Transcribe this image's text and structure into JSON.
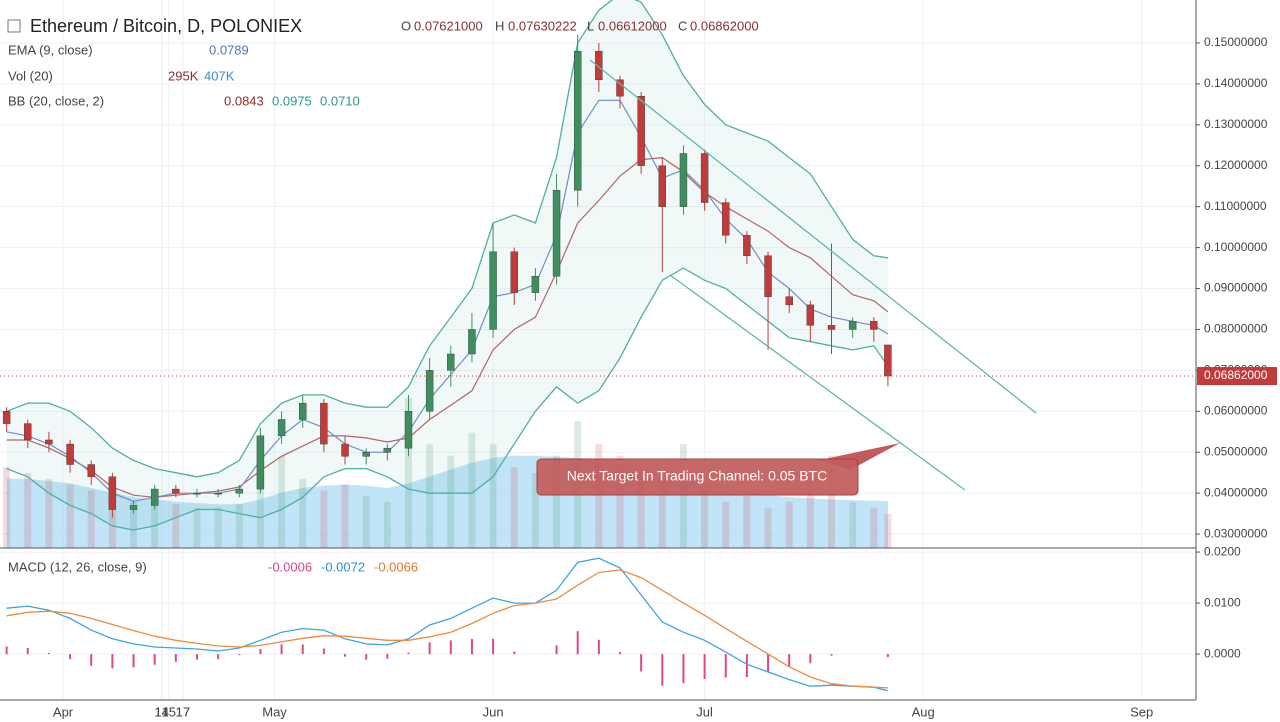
{
  "header": {
    "title": "Ethereum / Bitcoin, D, POLONIEX",
    "ohlc": [
      {
        "key": "O",
        "value": "0.07621000"
      },
      {
        "key": "H",
        "value": "0.07630222"
      },
      {
        "key": "L",
        "value": "0.06612000"
      },
      {
        "key": "C",
        "value": "0.06862000"
      }
    ],
    "indicators": [
      {
        "name": "EMA (9, close)",
        "values": [
          "0.0789"
        ]
      },
      {
        "name": "Vol (20)",
        "values": [
          "295K",
          "407K"
        ]
      },
      {
        "name": "BB (20, close, 2)",
        "values": [
          "0.0843",
          "0.0975",
          "0.0710"
        ]
      }
    ]
  },
  "chart_data": [
    {
      "type": "candlestick",
      "x": [
        -8,
        -5,
        -2,
        1,
        4,
        7,
        10,
        13,
        16,
        19,
        22,
        25,
        28,
        31,
        34,
        37,
        40,
        43,
        46,
        49,
        52,
        55,
        58,
        61,
        64,
        67,
        70,
        73,
        76,
        79,
        82,
        85,
        88,
        91,
        94,
        97,
        100,
        103,
        106,
        109,
        112,
        115,
        117
      ],
      "open": [
        0.06,
        0.057,
        0.053,
        0.052,
        0.047,
        0.044,
        0.036,
        0.037,
        0.041,
        0.04,
        0.04,
        0.04,
        0.041,
        0.054,
        0.058,
        0.062,
        0.052,
        0.049,
        0.05,
        0.051,
        0.06,
        0.07,
        0.074,
        0.08,
        0.099,
        0.089,
        0.093,
        0.114,
        0.148,
        0.141,
        0.137,
        0.12,
        0.11,
        0.123,
        0.111,
        0.103,
        0.098,
        0.088,
        0.086,
        0.081,
        0.08,
        0.082,
        0.07621
      ],
      "high": [
        0.061,
        0.058,
        0.055,
        0.053,
        0.048,
        0.045,
        0.038,
        0.042,
        0.042,
        0.041,
        0.041,
        0.042,
        0.056,
        0.06,
        0.064,
        0.063,
        0.054,
        0.051,
        0.052,
        0.064,
        0.073,
        0.076,
        0.084,
        0.106,
        0.1,
        0.095,
        0.118,
        0.152,
        0.15,
        0.142,
        0.138,
        0.122,
        0.125,
        0.124,
        0.112,
        0.104,
        0.099,
        0.09,
        0.087,
        0.101,
        0.083,
        0.083,
        0.07630222
      ],
      "low": [
        0.055,
        0.051,
        0.05,
        0.045,
        0.042,
        0.034,
        0.035,
        0.036,
        0.039,
        0.039,
        0.039,
        0.039,
        0.04,
        0.052,
        0.056,
        0.05,
        0.047,
        0.047,
        0.048,
        0.049,
        0.058,
        0.066,
        0.072,
        0.078,
        0.086,
        0.087,
        0.091,
        0.11,
        0.138,
        0.134,
        0.118,
        0.094,
        0.108,
        0.109,
        0.101,
        0.096,
        0.075,
        0.084,
        0.077,
        0.074,
        0.078,
        0.077,
        0.06612
      ],
      "close": [
        0.057,
        0.053,
        0.052,
        0.047,
        0.044,
        0.036,
        0.037,
        0.041,
        0.04,
        0.04,
        0.04,
        0.041,
        0.054,
        0.058,
        0.062,
        0.052,
        0.049,
        0.05,
        0.051,
        0.06,
        0.07,
        0.074,
        0.08,
        0.099,
        0.089,
        0.093,
        0.114,
        0.148,
        0.141,
        0.137,
        0.12,
        0.11,
        0.123,
        0.111,
        0.103,
        0.098,
        0.088,
        0.086,
        0.081,
        0.08,
        0.082,
        0.08,
        0.06862
      ],
      "ema": [
        0.055,
        0.054,
        0.052,
        0.049,
        0.045,
        0.04,
        0.038,
        0.039,
        0.04,
        0.04,
        0.04,
        0.041,
        0.048,
        0.054,
        0.058,
        0.056,
        0.052,
        0.05,
        0.05,
        0.055,
        0.063,
        0.069,
        0.075,
        0.088,
        0.089,
        0.091,
        0.103,
        0.128,
        0.136,
        0.136,
        0.127,
        0.117,
        0.119,
        0.114,
        0.107,
        0.102,
        0.094,
        0.09,
        0.085,
        0.083,
        0.082,
        0.081,
        0.0789
      ],
      "bb_upper": [
        0.06,
        0.062,
        0.062,
        0.06,
        0.056,
        0.051,
        0.048,
        0.046,
        0.045,
        0.044,
        0.045,
        0.048,
        0.057,
        0.062,
        0.064,
        0.064,
        0.062,
        0.061,
        0.061,
        0.066,
        0.076,
        0.083,
        0.09,
        0.106,
        0.108,
        0.106,
        0.122,
        0.15,
        0.158,
        0.162,
        0.16,
        0.152,
        0.142,
        0.135,
        0.13,
        0.128,
        0.126,
        0.122,
        0.118,
        0.11,
        0.102,
        0.098,
        0.0975
      ],
      "bb_middle": [
        0.053,
        0.053,
        0.051,
        0.0485,
        0.0455,
        0.0415,
        0.0395,
        0.039,
        0.0395,
        0.04,
        0.0405,
        0.0415,
        0.0455,
        0.049,
        0.0515,
        0.054,
        0.054,
        0.0535,
        0.0525,
        0.0535,
        0.058,
        0.0615,
        0.065,
        0.075,
        0.08,
        0.083,
        0.094,
        0.106,
        0.1115,
        0.1175,
        0.1215,
        0.122,
        0.1185,
        0.1135,
        0.11,
        0.107,
        0.104,
        0.1,
        0.0975,
        0.093,
        0.0885,
        0.087,
        0.0843
      ],
      "bb_lower": [
        0.046,
        0.044,
        0.04,
        0.037,
        0.035,
        0.032,
        0.031,
        0.032,
        0.034,
        0.036,
        0.036,
        0.035,
        0.034,
        0.036,
        0.039,
        0.044,
        0.046,
        0.046,
        0.044,
        0.041,
        0.04,
        0.04,
        0.04,
        0.044,
        0.052,
        0.06,
        0.066,
        0.062,
        0.065,
        0.073,
        0.083,
        0.092,
        0.095,
        0.092,
        0.09,
        0.086,
        0.082,
        0.078,
        0.077,
        0.076,
        0.075,
        0.076,
        0.071
      ],
      "volume": [
        700,
        650,
        600,
        550,
        500,
        450,
        400,
        420,
        380,
        350,
        350,
        380,
        700,
        800,
        600,
        500,
        550,
        450,
        400,
        1300,
        900,
        800,
        1000,
        900,
        700,
        650,
        800,
        1100,
        900,
        800,
        700,
        600,
        900,
        500,
        400,
        450,
        350,
        400,
        600,
        800,
        400,
        350,
        295
      ],
      "volume_ma": [
        600,
        600,
        580,
        560,
        520,
        480,
        440,
        420,
        400,
        390,
        380,
        380,
        420,
        480,
        520,
        540,
        550,
        540,
        520,
        560,
        620,
        680,
        740,
        780,
        800,
        800,
        790,
        780,
        760,
        720,
        680,
        640,
        600,
        560,
        520,
        490,
        460,
        440,
        430,
        420,
        415,
        410,
        407
      ],
      "up_color": "#3f8f5e",
      "down_color": "#c23b3b",
      "ema_color": "#6d8fc4",
      "bb_color": "#4fb0a0",
      "bb_middle_color": "#b46464",
      "volume_ma_color": "#8fcdf3",
      "xlim": [
        -8.94,
        160.7
      ],
      "xticks": [
        {
          "value": 0,
          "label": "Apr"
        },
        17,
        {
          "value": 30,
          "label": "May"
        },
        15,
        {
          "value": 61,
          "label": "Jun"
        },
        14,
        {
          "value": 91,
          "label": "Jul"
        },
        17,
        {
          "value": 122,
          "label": "Aug"
        },
        14,
        {
          "value": 153,
          "label": "Sep"
        }
      ],
      "ylim": [
        0.0266,
        0.1605
      ],
      "yticks": [
        {
          "value": 0.03,
          "label": "0.03000000"
        },
        {
          "value": 0.04,
          "label": "0.04000000"
        },
        {
          "value": 0.05,
          "label": "0.05000000"
        },
        {
          "value": 0.06,
          "label": "0.06000000"
        },
        {
          "value": 0.07,
          "label": "0.07000000"
        },
        {
          "value": 0.08,
          "label": "0.08000000"
        },
        {
          "value": 0.09,
          "label": "0.09000000"
        },
        {
          "value": 0.1,
          "label": "0.10000000"
        },
        {
          "value": 0.11,
          "label": "0.11000000"
        },
        {
          "value": 0.12,
          "label": "0.12000000"
        },
        {
          "value": 0.13,
          "label": "0.13000000"
        },
        {
          "value": 0.14,
          "label": "0.14000000"
        },
        {
          "value": 0.15,
          "label": "0.15000000"
        }
      ],
      "grid": true,
      "last_price": {
        "value": 0.06862,
        "label": "0.06862000"
      },
      "annotation": "Next Target In Trading Channel: 0.05 BTC"
    },
    {
      "type": "line",
      "title": "MACD (12, 26, close, 9)",
      "legend_values": [
        "-0.0006",
        "-0.0072",
        "-0.0066"
      ],
      "histogram": {
        "color": "#e0468a",
        "values": [
          0.0015,
          0.0012,
          0.0002,
          -0.001,
          -0.0023,
          -0.0028,
          -0.0026,
          -0.0021,
          -0.0015,
          -0.0011,
          -0.001,
          -0.0002,
          0.001,
          0.0019,
          0.0019,
          0.0011,
          -0.0005,
          -0.0011,
          -0.0009,
          0.0003,
          0.0023,
          0.0027,
          0.003,
          0.003,
          0.0005,
          0,
          0.0017,
          0.0045,
          0.0028,
          0.0004,
          -0.0034,
          -0.0062,
          -0.0057,
          -0.0049,
          -0.0046,
          -0.0045,
          -0.0035,
          -0.0025,
          -0.0018,
          -0.0003,
          0,
          0,
          -0.0006
        ]
      },
      "series": [
        {
          "color": "#3da5e0",
          "values": [
            0.009,
            0.0094,
            0.0086,
            0.007,
            0.0047,
            0.003,
            0.002,
            0.0014,
            0.0012,
            0.001,
            0.0006,
            0.0012,
            0.0027,
            0.0043,
            0.005,
            0.0047,
            0.003,
            0.002,
            0.0018,
            0.003,
            0.0057,
            0.007,
            0.009,
            0.011,
            0.01,
            0.01,
            0.0125,
            0.018,
            0.0188,
            0.0169,
            0.0116,
            0.0063,
            0.0043,
            0.0027,
            0.0004,
            -0.002,
            -0.0035,
            -0.005,
            -0.0063,
            -0.0061,
            -0.0063,
            -0.0065,
            -0.0072
          ]
        },
        {
          "color": "#f08a3c",
          "values": [
            0.0075,
            0.0082,
            0.0084,
            0.008,
            0.007,
            0.0058,
            0.0046,
            0.0035,
            0.0027,
            0.0021,
            0.0016,
            0.0014,
            0.0017,
            0.0024,
            0.0031,
            0.0036,
            0.0035,
            0.0031,
            0.0027,
            0.0027,
            0.0034,
            0.0043,
            0.006,
            0.008,
            0.0095,
            0.01,
            0.0108,
            0.0135,
            0.016,
            0.0165,
            0.015,
            0.0125,
            0.01,
            0.0076,
            0.005,
            0.0025,
            0,
            -0.0025,
            -0.0045,
            -0.0058,
            -0.0063,
            -0.0065,
            -0.0066
          ]
        }
      ],
      "ylim": [
        -0.009,
        0.0208
      ],
      "yticks": [
        {
          "value": 0,
          "label": "0.0000"
        },
        {
          "value": 0.01,
          "label": "0.0100"
        },
        {
          "value": 0.02,
          "label": "0.0200"
        }
      ]
    }
  ]
}
